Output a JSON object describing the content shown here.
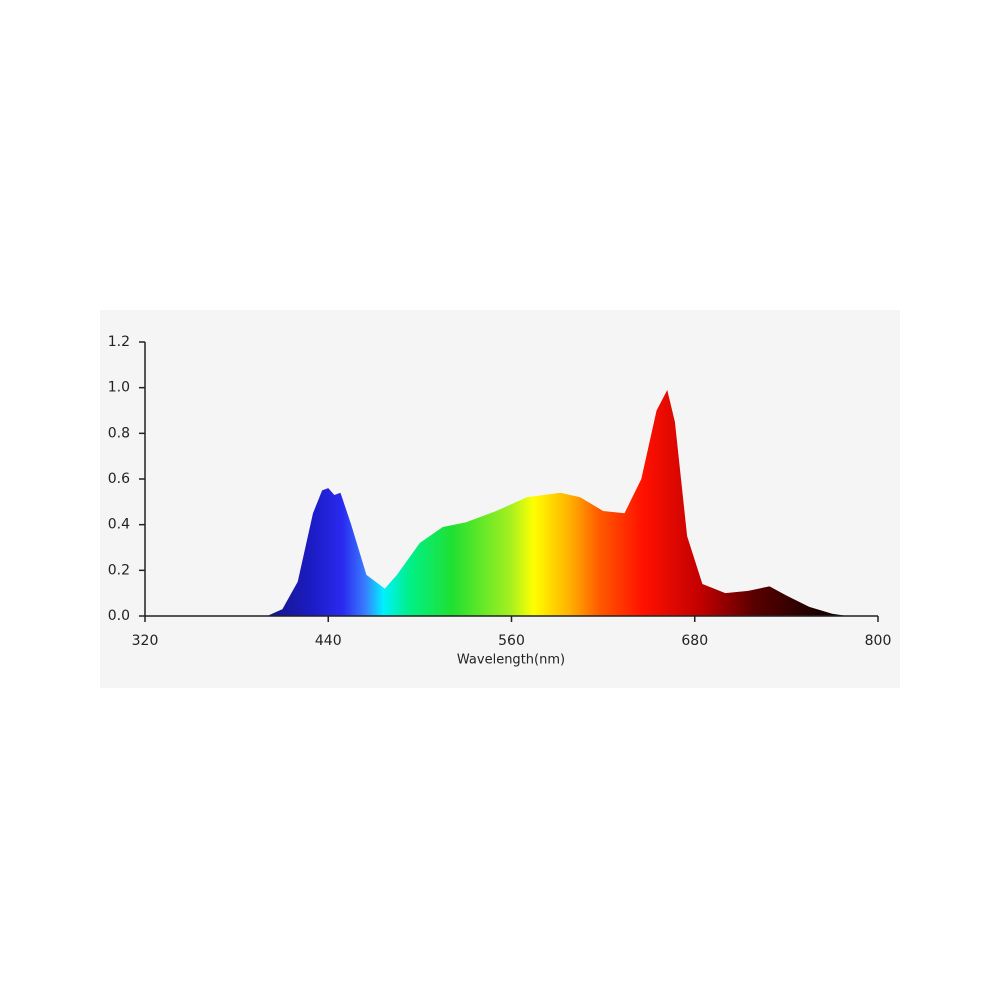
{
  "chart_data": {
    "type": "area",
    "x_label": "Wavelength(nm)",
    "x": [
      400,
      410,
      420,
      430,
      436,
      440,
      444,
      448,
      455,
      465,
      477,
      485,
      500,
      515,
      530,
      550,
      570,
      592,
      605,
      620,
      634,
      645,
      655,
      662,
      667,
      675,
      685,
      700,
      715,
      729,
      740,
      755,
      770,
      780
    ],
    "y": [
      0,
      0.03,
      0.15,
      0.45,
      0.55,
      0.56,
      0.53,
      0.54,
      0.4,
      0.18,
      0.12,
      0.18,
      0.32,
      0.39,
      0.41,
      0.46,
      0.52,
      0.54,
      0.52,
      0.46,
      0.45,
      0.6,
      0.9,
      0.99,
      0.85,
      0.35,
      0.14,
      0.1,
      0.11,
      0.13,
      0.09,
      0.04,
      0.01,
      0
    ],
    "xlim": [
      320,
      800
    ],
    "ylim": [
      0,
      1.2
    ],
    "xticks": [
      320,
      440,
      560,
      680,
      800
    ],
    "yticks": [
      {
        "value": 0,
        "label": "0.0"
      },
      {
        "value": 0.2,
        "label": "0.2"
      },
      {
        "value": 0.4,
        "label": "0.4"
      },
      {
        "value": 0.6,
        "label": "0.6"
      },
      {
        "value": 0.8,
        "label": "0.8"
      },
      {
        "value": 1.0,
        "label": "1.0"
      },
      {
        "value": 1.2,
        "label": "1.2"
      }
    ]
  }
}
